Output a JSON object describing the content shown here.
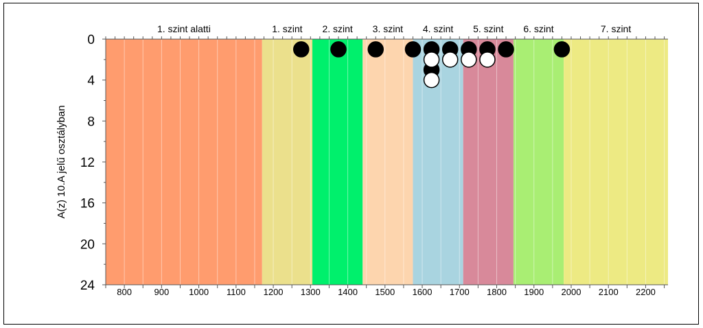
{
  "chart_data": {
    "type": "scatter",
    "ylabel": "A(z) 10.A jelű osztályban",
    "xlabel": "",
    "xlim": [
      750,
      2260
    ],
    "ylim": [
      0,
      24
    ],
    "y_inverted": true,
    "x_ticks": [
      800,
      900,
      1000,
      1100,
      1200,
      1300,
      1400,
      1500,
      1600,
      1700,
      1800,
      1900,
      2000,
      2100,
      2200
    ],
    "y_ticks": [
      0,
      4,
      8,
      12,
      16,
      20,
      24
    ],
    "levels": [
      {
        "label": "1. szint alatti",
        "from": 750,
        "to": 1170,
        "color": "#FF9C6E"
      },
      {
        "label": "1. szint",
        "from": 1170,
        "to": 1305,
        "color": "#EBE08C"
      },
      {
        "label": "2. szint",
        "from": 1305,
        "to": 1440,
        "color": "#00F06C"
      },
      {
        "label": "3. szint",
        "from": 1440,
        "to": 1575,
        "color": "#FDD5AE"
      },
      {
        "label": "4. szint",
        "from": 1575,
        "to": 1710,
        "color": "#A9D4E0"
      },
      {
        "label": "5. szint",
        "from": 1710,
        "to": 1845,
        "color": "#D8899A"
      },
      {
        "label": "6. szint",
        "from": 1845,
        "to": 1980,
        "color": "#A9EE73"
      },
      {
        "label": "7. szint",
        "from": 1980,
        "to": 2260,
        "color": "#EDEA83"
      }
    ],
    "series": [
      {
        "marker": "filled-black",
        "points": [
          {
            "x": 1275,
            "y": 1
          },
          {
            "x": 1375,
            "y": 1
          },
          {
            "x": 1475,
            "y": 1
          },
          {
            "x": 1575,
            "y": 1
          },
          {
            "x": 1625,
            "y": 1
          },
          {
            "x": 1625,
            "y": 3
          },
          {
            "x": 1675,
            "y": 1
          },
          {
            "x": 1725,
            "y": 1
          },
          {
            "x": 1775,
            "y": 1
          },
          {
            "x": 1825,
            "y": 1
          },
          {
            "x": 1975,
            "y": 1
          }
        ]
      },
      {
        "marker": "hollow-white",
        "points": [
          {
            "x": 1625,
            "y": 2
          },
          {
            "x": 1675,
            "y": 2
          },
          {
            "x": 1725,
            "y": 2
          },
          {
            "x": 1775,
            "y": 2
          },
          {
            "x": 1625,
            "y": 4
          }
        ]
      }
    ],
    "grid": true
  }
}
